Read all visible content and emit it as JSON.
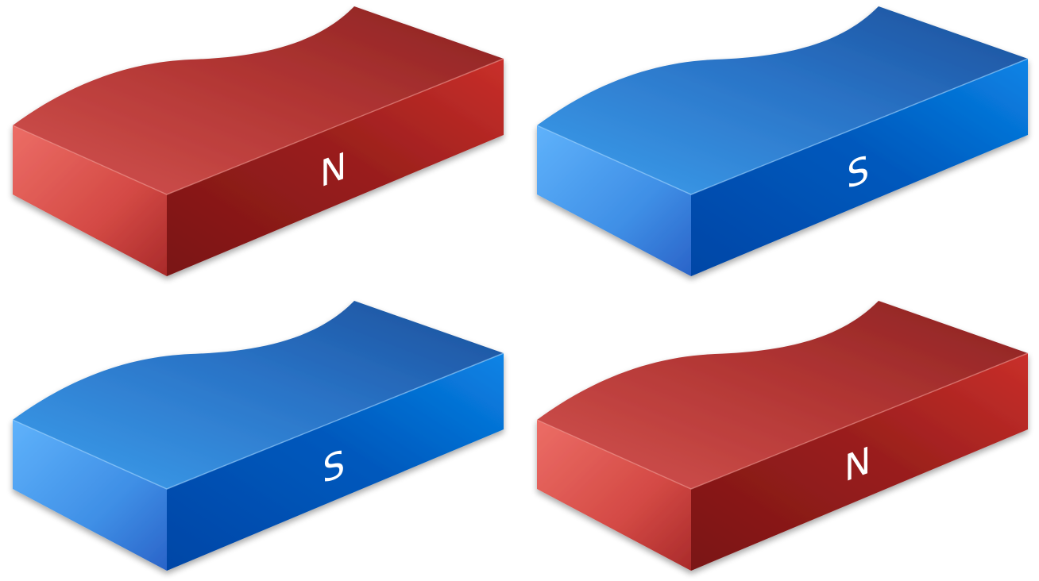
{
  "magnets": [
    {
      "id": "top-left",
      "pole": "N",
      "color": "red"
    },
    {
      "id": "top-right",
      "pole": "S",
      "color": "blue"
    },
    {
      "id": "bottom-left",
      "pole": "S",
      "color": "blue"
    },
    {
      "id": "bottom-right",
      "pole": "N",
      "color": "red"
    }
  ],
  "colors": {
    "red_top_light": "#c84743",
    "red_top_dark": "#8e2323",
    "red_left_light": "#e86a62",
    "red_left_dark": "#b23030",
    "red_front_light": "#c42e2a",
    "red_front_dark": "#7d1616",
    "blue_top_light": "#3b93e4",
    "blue_top_dark": "#1e5aa6",
    "blue_left_light": "#5aabf6",
    "blue_left_dark": "#2c6fd0",
    "blue_front_light": "#0a7de0",
    "blue_front_dark": "#0047a8",
    "background": "#ffffff"
  }
}
